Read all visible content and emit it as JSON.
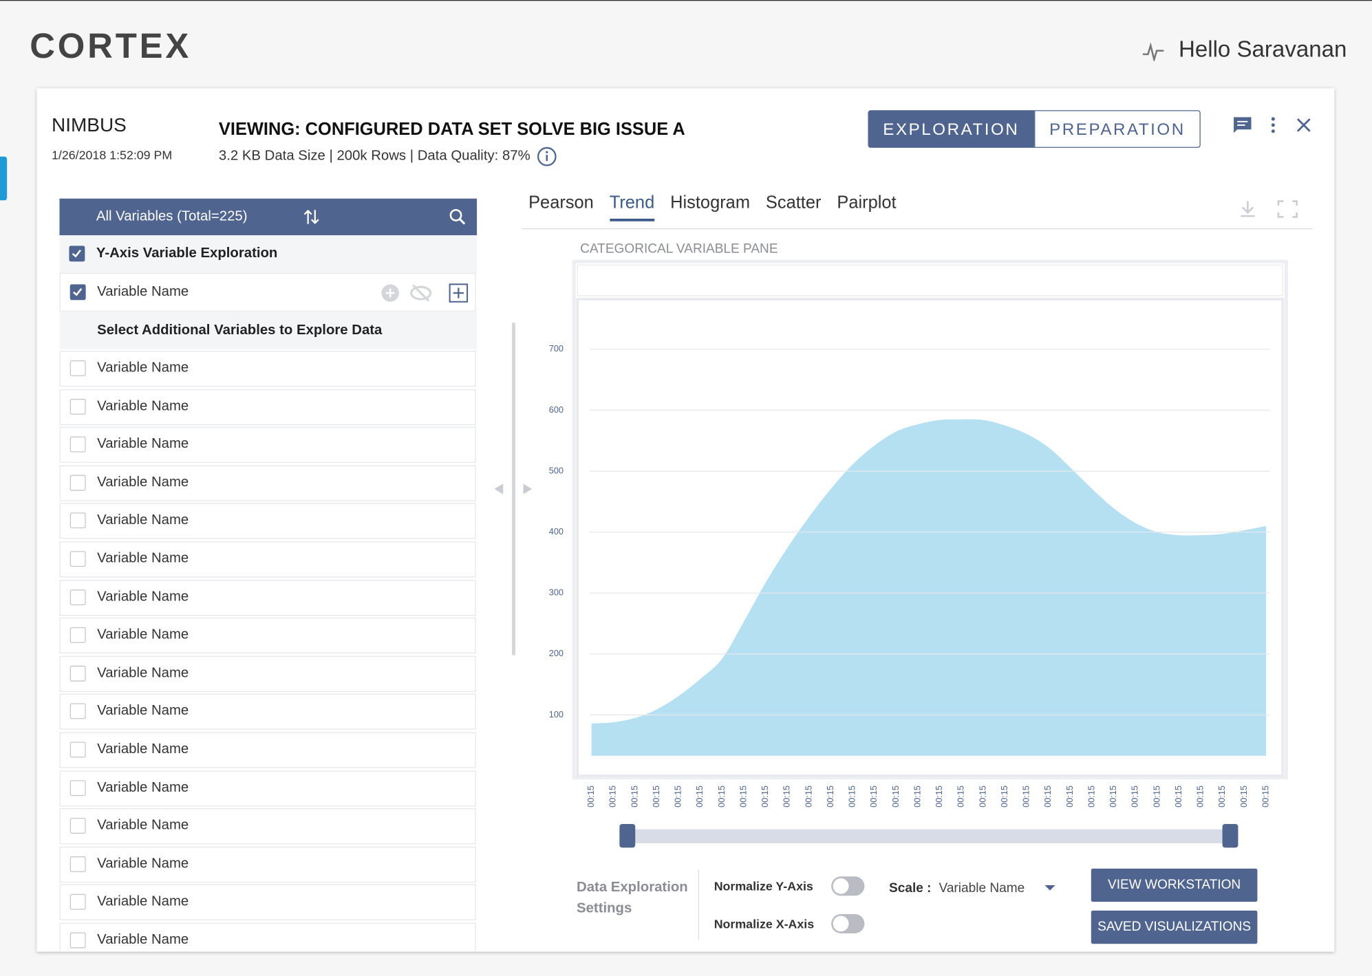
{
  "header": {
    "logo": "CORTEX",
    "greeting": "Hello Saravanan"
  },
  "panel": {
    "project": "NIMBUS",
    "timestamp": "1/26/2018 1:52:09 PM",
    "title": "VIEWING: CONFIGURED DATA SET SOLVE BIG ISSUE A",
    "stats": "3.2 KB Data Size | 200k Rows | Data Quality: 87%",
    "modes": [
      "EXPLORATION",
      "PREPARATION"
    ]
  },
  "variables": {
    "header": "All Variables (Total=225)",
    "y_axis_title": "Y-Axis Variable Exploration",
    "y_axis_variable": "Variable Name",
    "additional_title": "Select Additional Variables to Explore Data",
    "items": [
      "Variable Name",
      "Variable Name",
      "Variable Name",
      "Variable Name",
      "Variable Name",
      "Variable Name",
      "Variable Name",
      "Variable Name",
      "Variable Name",
      "Variable Name",
      "Variable Name",
      "Variable Name",
      "Variable Name",
      "Variable Name",
      "Variable Name",
      "Variable Name"
    ]
  },
  "tabs": [
    "Pearson",
    "Trend",
    "Histogram",
    "Scatter",
    "Pairplot"
  ],
  "chart_data": {
    "type": "area",
    "title": "CATEGORICAL VARIABLE PANE",
    "categories": [
      "00:15",
      "00:15",
      "00:15",
      "00:15",
      "00:15",
      "00:15",
      "00:15",
      "00:15",
      "00:15",
      "00:15",
      "00:15",
      "00:15",
      "00:15",
      "00:15",
      "00:15",
      "00:15",
      "00:15",
      "00:15",
      "00:15",
      "00:15",
      "00:15",
      "00:15",
      "00:15",
      "00:15",
      "00:15",
      "00:15",
      "00:15",
      "00:15",
      "00:15",
      "00:15",
      "00:15",
      "00:15"
    ],
    "values": [
      86,
      88,
      95,
      109,
      131,
      159,
      192,
      253,
      317,
      374,
      425,
      471,
      511,
      542,
      565,
      577,
      584,
      585,
      584,
      575,
      561,
      539,
      506,
      471,
      439,
      415,
      400,
      395,
      395,
      397,
      403,
      410
    ],
    "color": "#b0def1",
    "ylim": [
      33,
      745
    ],
    "yticks": [
      100,
      200,
      300,
      400,
      500,
      600,
      700
    ],
    "grid": true
  },
  "settings": {
    "title": "Data Exploration Settings",
    "normalize_y": "Normalize Y-Axis",
    "normalize_x": "Normalize X-Axis",
    "scale_label": "Scale :",
    "scale_value": "Variable Name",
    "buttons": [
      "VIEW WORKSTATION",
      "SAVED VISUALIZATIONS"
    ]
  }
}
